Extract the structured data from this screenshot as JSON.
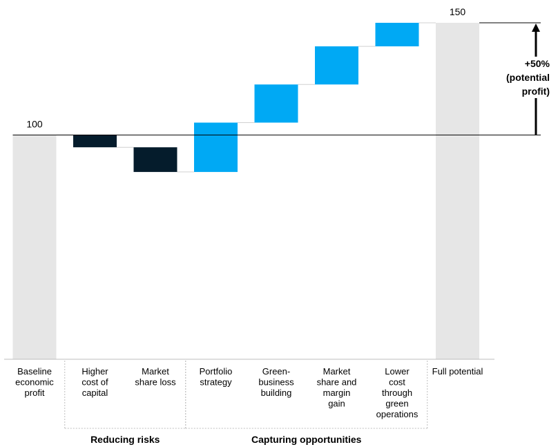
{
  "chart_data": {
    "type": "waterfall",
    "title": "",
    "xlabel": "",
    "ylabel": "",
    "ylim": [
      0,
      150
    ],
    "categories": [
      [
        "Baseline",
        "economic",
        "profit"
      ],
      [
        "Higher",
        "cost of",
        "capital"
      ],
      [
        "Market",
        "share loss"
      ],
      [
        "Portfolio",
        "strategy"
      ],
      [
        "Green-",
        "business",
        "building"
      ],
      [
        "Market",
        "share and",
        "margin",
        "gain"
      ],
      [
        "Lower",
        "cost",
        "through",
        "green",
        "operations"
      ],
      [
        "Full potential"
      ]
    ],
    "bars": [
      {
        "kind": "total",
        "start": 0,
        "end": 100
      },
      {
        "kind": "decrease",
        "start": 100,
        "end": 94.5
      },
      {
        "kind": "decrease",
        "start": 94.5,
        "end": 83.5
      },
      {
        "kind": "increase",
        "start": 83.5,
        "end": 105.5
      },
      {
        "kind": "increase",
        "start": 105.5,
        "end": 122.5
      },
      {
        "kind": "increase",
        "start": 122.5,
        "end": 139.5
      },
      {
        "kind": "increase",
        "start": 139.5,
        "end": 150
      },
      {
        "kind": "total",
        "start": 0,
        "end": 150
      }
    ],
    "value_labels": [
      "100",
      "150"
    ],
    "groups": [
      {
        "label": "Reducing risks",
        "first": 1,
        "last": 2
      },
      {
        "label": "Capturing opportunities",
        "first": 3,
        "last": 6
      }
    ],
    "annotation": [
      "+50%",
      "(potential",
      "profit)"
    ],
    "colors": {
      "total": "#e6e6e6",
      "decrease": "#051c2c",
      "increase": "#00a9f4",
      "connector": "#d0d0d0",
      "text": "#000000",
      "separator": "#bdbdbd"
    }
  }
}
